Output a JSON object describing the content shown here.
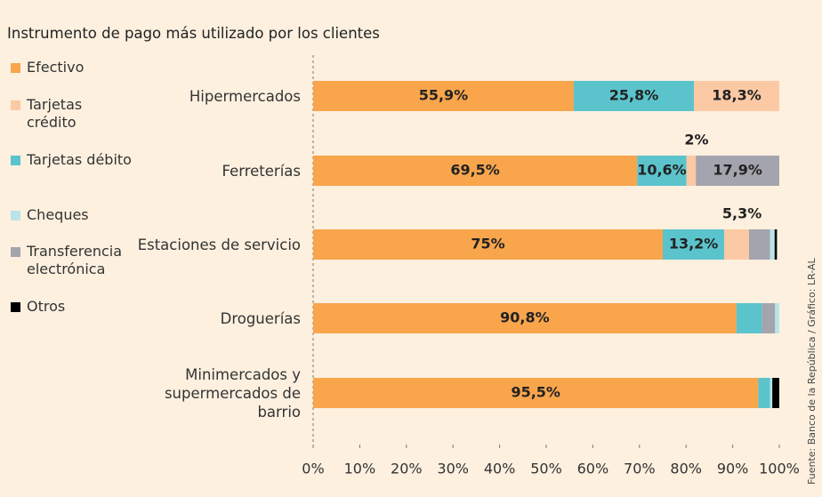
{
  "chart_data": {
    "type": "stacked-barh",
    "title": "Instrumento de pago más utilizado por los clientes",
    "source": "Fuente: Banco de la República / Gráfico: LR-AL",
    "categories": [
      "Hipermercados",
      "Ferreterías",
      "Estaciones de servicio",
      "Droguerías",
      "Minimercados y supermercados de barrio"
    ],
    "series": [
      {
        "name": "Efectivo",
        "color": "#f9a54c",
        "values": [
          55.9,
          69.5,
          75,
          90.8,
          95.5
        ],
        "value_labels": [
          "55,9%",
          "69,5%",
          "75%",
          "90,8%",
          "95,5%"
        ]
      },
      {
        "name": "Tarjetas crédito",
        "color": "#fbc9a4",
        "values": [
          18.3,
          2,
          5.3,
          null,
          null
        ],
        "value_labels": [
          "18,3%",
          "2%",
          "5,3%",
          null,
          null
        ]
      },
      {
        "name": "Tarjetas débito",
        "color": "#5bc3cb",
        "values": [
          25.8,
          10.6,
          13.2,
          5.5,
          2.5
        ],
        "value_labels": [
          "25,8%",
          "10,6%",
          "13,2%",
          null,
          null
        ]
      },
      {
        "name": "Cheques",
        "color": "#b9e4e8",
        "values": [
          null,
          null,
          1,
          0.9,
          0.5
        ]
      },
      {
        "name": "Transferencia electrónica",
        "color": "#a4a4ae",
        "values": [
          null,
          17.9,
          4.5,
          2.8,
          null
        ],
        "value_labels": [
          null,
          "17,9%",
          null,
          null,
          null
        ]
      },
      {
        "name": "Otros",
        "color": "#000000",
        "values": [
          null,
          null,
          0.5,
          null,
          1.5
        ]
      }
    ],
    "xlim": [
      0,
      100
    ],
    "xticks": [
      {
        "value": 0,
        "label": "0%"
      },
      {
        "value": 10,
        "label": "10%"
      },
      {
        "value": 20,
        "label": "20%"
      },
      {
        "value": 30,
        "label": "30%"
      },
      {
        "value": 40,
        "label": "40%"
      },
      {
        "value": 50,
        "label": "50%"
      },
      {
        "value": 60,
        "label": "60%"
      },
      {
        "value": 70,
        "label": "70%"
      },
      {
        "value": 80,
        "label": "80%"
      },
      {
        "value": 90,
        "label": "90%"
      },
      {
        "value": 100,
        "label": "100%"
      }
    ]
  }
}
